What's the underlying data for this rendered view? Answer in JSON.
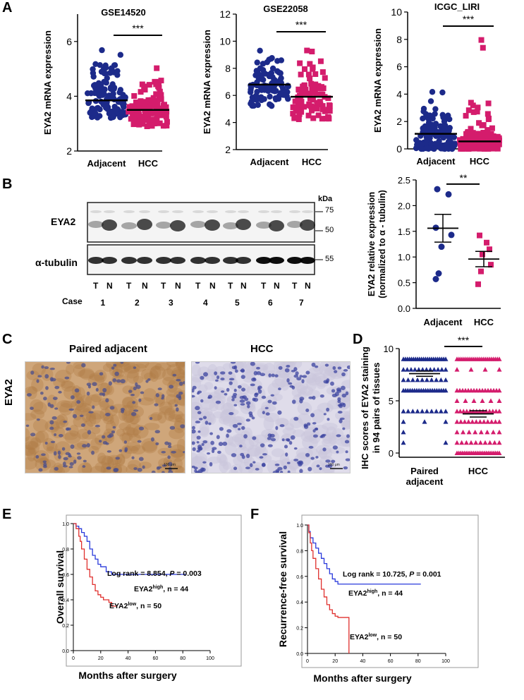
{
  "panels": {
    "A": "A",
    "B": "B",
    "C": "C",
    "D": "D",
    "E": "E",
    "F": "F"
  },
  "colors": {
    "adjacent": "#1c2a8a",
    "hcc": "#d41c6c",
    "km_high": "#2a3adb",
    "km_low": "#e0302e"
  },
  "chart_data": [
    {
      "id": "A1",
      "type": "scatter",
      "title": "GSE14520",
      "ylabel": "EYA2 mRNA expression",
      "categories": [
        "Adjacent",
        "HCC"
      ],
      "ylim": [
        2,
        7
      ],
      "yticks": [
        "2",
        "4",
        "6"
      ],
      "yticks_values": [
        2,
        4,
        6
      ],
      "means": [
        3.85,
        3.5
      ],
      "significance": "***",
      "ranges": [
        [
          3.2,
          4.5,
          5.3,
          6.1
        ],
        [
          2.9,
          3.9,
          4.6,
          5.1
        ]
      ],
      "n": [
        130,
        110
      ]
    },
    {
      "id": "A2",
      "type": "scatter",
      "title": "GSE22058",
      "ylabel": "EYA2 mRNA expression",
      "categories": [
        "Adjacent",
        "HCC"
      ],
      "ylim": [
        2,
        12
      ],
      "yticks": [
        "2",
        "4",
        "6",
        "8",
        "10",
        "12"
      ],
      "yticks_values": [
        2,
        4,
        6,
        8,
        10,
        12
      ],
      "means": [
        6.8,
        5.9
      ],
      "significance": "***",
      "ranges": [
        [
          5.2,
          7.8,
          8.8,
          9.5
        ],
        [
          4.2,
          6.8,
          8.5,
          9.5
        ]
      ],
      "n": [
        95,
        95
      ]
    },
    {
      "id": "A3",
      "type": "scatter",
      "title": "ICGC_LIRI",
      "ylabel": "EYA2 mRNA expression",
      "categories": [
        "Adjacent",
        "HCC"
      ],
      "ylim": [
        0,
        10
      ],
      "yticks": [
        "0",
        "2",
        "4",
        "6",
        "8",
        "10"
      ],
      "yticks_values": [
        0,
        2,
        4,
        6,
        8,
        10
      ],
      "means": [
        1.1,
        0.55
      ],
      "significance": "***",
      "ranges": [
        [
          0,
          1.8,
          3.0,
          4.2
        ],
        [
          0,
          1.2,
          3.5,
          8.4
        ]
      ],
      "n": [
        140,
        150
      ]
    },
    {
      "id": "B",
      "type": "scatter",
      "ylabel": "EYA2 relative expression\n(normalized to α - tubulin)",
      "ylabel_lines": [
        "EYA2 relative expression",
        "(normalized to α - tubulin)"
      ],
      "categories": [
        "Adjacent",
        "HCC"
      ],
      "ylim": [
        0,
        2.5
      ],
      "yticks": [
        "0.0",
        "0.5",
        "1.0",
        "1.5",
        "2.0",
        "2.5"
      ],
      "yticks_values": [
        0,
        0.5,
        1,
        1.5,
        2,
        2.5
      ],
      "means": [
        1.56,
        0.96
      ],
      "sem": [
        0.27,
        0.15
      ],
      "significance": "**",
      "points": [
        [
          2.32,
          2.22,
          1.57,
          1.43,
          1.2,
          0.68,
          0.57
        ],
        [
          1.42,
          1.28,
          1.15,
          1.05,
          0.85,
          0.72,
          0.47
        ]
      ]
    },
    {
      "id": "D",
      "type": "scatter",
      "ylabel_lines": [
        "IHC scores of EYA2 staining",
        "in 94 pairs of tissues"
      ],
      "categories": [
        "Paired\nadjacent",
        "HCC"
      ],
      "category_lines": [
        [
          "Paired",
          "adjacent"
        ],
        [
          "HCC"
        ]
      ],
      "ylim": [
        0,
        10
      ],
      "yticks": [
        "0",
        "5",
        "10"
      ],
      "yticks_values": [
        0,
        5,
        10
      ],
      "means": [
        7.6,
        3.75
      ],
      "sem": [
        0.25,
        0.3
      ],
      "significance": "***",
      "levels": [
        [
          9,
          8,
          7,
          6,
          4,
          3,
          2,
          1
        ],
        [
          9,
          8,
          6,
          5,
          4,
          3,
          2,
          1,
          0
        ]
      ]
    },
    {
      "id": "E",
      "type": "line",
      "ylabel": "Overall survival",
      "xlabel": "Months after surgery",
      "xlim": [
        0,
        100
      ],
      "ylim": [
        0,
        1
      ],
      "xticks": [
        "0",
        "20",
        "40",
        "60",
        "80",
        "100"
      ],
      "yticks": [
        "0.0",
        "0.2",
        "0.4",
        "0.6",
        "0.8",
        "1.0"
      ],
      "stat_label": "Log rank = 8.854, ",
      "stat_p": "P",
      "stat_val": " = 0.003",
      "series": [
        {
          "name": "EYA2high, n = 44",
          "label_main": "EYA2",
          "label_sup": "high",
          "label_rest": ", n = 44",
          "x": [
            0,
            2,
            4,
            6,
            8,
            10,
            12,
            14,
            16,
            18,
            20,
            24,
            28,
            82
          ],
          "y": [
            1,
            0.98,
            0.96,
            0.93,
            0.9,
            0.86,
            0.8,
            0.75,
            0.72,
            0.68,
            0.66,
            0.62,
            0.6,
            0.6
          ]
        },
        {
          "name": "EYA2low, n = 50",
          "label_main": "EYA2",
          "label_sup": "low",
          "label_rest": ", n = 50",
          "x": [
            0,
            2,
            4,
            5,
            6,
            8,
            10,
            12,
            14,
            16,
            18,
            20,
            22,
            26,
            28,
            32
          ],
          "y": [
            1,
            0.96,
            0.9,
            0.86,
            0.8,
            0.72,
            0.64,
            0.58,
            0.52,
            0.47,
            0.44,
            0.42,
            0.4,
            0.38,
            0.35,
            0.35
          ]
        }
      ]
    },
    {
      "id": "F",
      "type": "line",
      "ylabel": "Recurrence-free survival",
      "xlabel": "Months after surgery",
      "xlim": [
        0,
        100
      ],
      "ylim": [
        0,
        1
      ],
      "xticks": [
        "0",
        "20",
        "40",
        "60",
        "80",
        "100"
      ],
      "yticks": [
        "0.0",
        "0.2",
        "0.4",
        "0.6",
        "0.8",
        "1.0"
      ],
      "stat_label": "Log rank = 10.725, ",
      "stat_p": "P",
      "stat_val": " = 0.001",
      "series": [
        {
          "name": "EYA2high, n = 44",
          "label_main": "EYA2",
          "label_sup": "high",
          "label_rest": ", n = 44",
          "x": [
            0,
            1,
            2,
            4,
            6,
            8,
            10,
            12,
            14,
            16,
            18,
            20,
            22,
            26,
            82
          ],
          "y": [
            1,
            0.95,
            0.9,
            0.86,
            0.82,
            0.78,
            0.74,
            0.7,
            0.66,
            0.62,
            0.58,
            0.56,
            0.54,
            0.54,
            0.54
          ]
        },
        {
          "name": "EYA2low, n = 50",
          "label_main": "EYA2",
          "label_sup": "low",
          "label_rest": ", n = 50",
          "x": [
            0,
            1,
            2,
            3,
            4,
            6,
            8,
            10,
            12,
            14,
            16,
            18,
            20,
            22,
            26,
            30,
            30
          ],
          "y": [
            1,
            0.94,
            0.86,
            0.8,
            0.74,
            0.66,
            0.58,
            0.5,
            0.44,
            0.38,
            0.34,
            0.31,
            0.29,
            0.28,
            0.28,
            0.28,
            0
          ]
        }
      ]
    }
  ],
  "blot": {
    "kda_label": "kDa",
    "markers_top": [
      "75",
      "50"
    ],
    "markers_bottom": [
      "55"
    ],
    "row_labels": [
      "EYA2",
      "α-tubulin"
    ],
    "lanes": [
      "T",
      "N",
      "T",
      "N",
      "T",
      "N",
      "T",
      "N",
      "T",
      "N",
      "T",
      "N",
      "T",
      "N"
    ],
    "case_label": "Case",
    "cases": [
      "1",
      "2",
      "3",
      "4",
      "5",
      "6",
      "7"
    ]
  },
  "ihc": {
    "left_title": "Paired adjacent",
    "right_title": "HCC",
    "row_label": "EYA2",
    "scale_bar": "100 μm"
  }
}
